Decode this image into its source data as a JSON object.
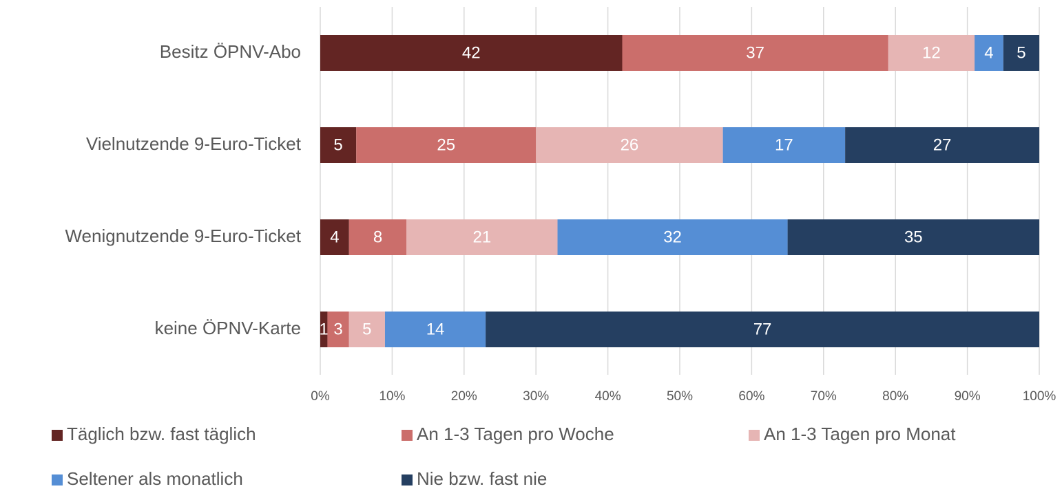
{
  "chart_data": {
    "type": "stacked-bar-horizontal",
    "categories": [
      "Besitz ÖPNV-Abo",
      "Vielnutzende 9-Euro-Ticket",
      "Wenignutzende 9-Euro-Ticket",
      "keine ÖPNV-Karte"
    ],
    "series": [
      {
        "name": "Täglich bzw. fast täglich",
        "color": "#632523",
        "values": [
          42,
          5,
          4,
          1
        ]
      },
      {
        "name": "An 1-3 Tagen pro Woche",
        "color": "#cb6e6b",
        "values": [
          37,
          25,
          8,
          3
        ]
      },
      {
        "name": "An 1-3 Tagen pro Monat",
        "color": "#e6b5b4",
        "values": [
          12,
          26,
          21,
          5
        ]
      },
      {
        "name": "Seltener als monatlich",
        "color": "#558ed5",
        "values": [
          4,
          17,
          32,
          14
        ]
      },
      {
        "name": "Nie bzw. fast nie",
        "color": "#253f61",
        "values": [
          5,
          27,
          35,
          77
        ]
      }
    ],
    "xlim": [
      0,
      100
    ],
    "xticks": [
      {
        "value": 0,
        "label": "0%"
      },
      {
        "value": 10,
        "label": "10%"
      },
      {
        "value": 20,
        "label": "20%"
      },
      {
        "value": 30,
        "label": "30%"
      },
      {
        "value": 40,
        "label": "40%"
      },
      {
        "value": 50,
        "label": "50%"
      },
      {
        "value": 60,
        "label": "60%"
      },
      {
        "value": 70,
        "label": "70%"
      },
      {
        "value": 80,
        "label": "80%"
      },
      {
        "value": 90,
        "label": "90%"
      },
      {
        "value": 100,
        "label": "100%"
      }
    ],
    "grid": true,
    "legend": "bottom"
  }
}
